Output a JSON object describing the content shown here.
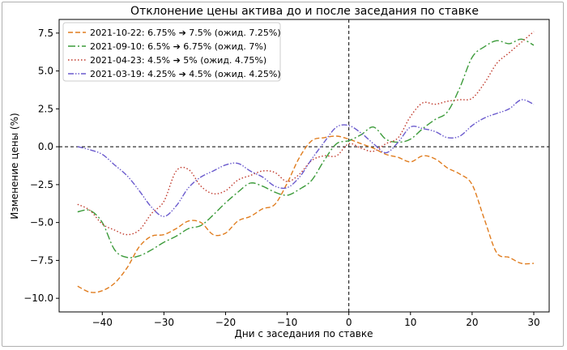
{
  "chart_data": {
    "type": "line",
    "title": "Отклонение цены актива до и после заседания по ставке",
    "xlabel": "Дни с заседания по ставке",
    "ylabel": "Изменение цены (%)",
    "xlim": [
      -47,
      32.5
    ],
    "ylim": [
      -10.9,
      8.4
    ],
    "xticks": [
      -40,
      -30,
      -20,
      -10,
      0,
      10,
      20,
      30
    ],
    "xtick_labels": [
      "−40",
      "−30",
      "−20",
      "−10",
      "0",
      "10",
      "20",
      "30"
    ],
    "yticks": [
      -10.0,
      -7.5,
      -5.0,
      -2.5,
      0.0,
      2.5,
      5.0,
      7.5
    ],
    "ytick_labels": [
      "−10.0",
      "−7.5",
      "−5.0",
      "−2.5",
      "0.0",
      "2.5",
      "5.0",
      "7.5"
    ],
    "grid": false,
    "legend_position": "top-left",
    "reference_lines": {
      "horizontal_y": 0,
      "vertical_x": 0,
      "style": "dashed",
      "color": "#000000"
    },
    "series": [
      {
        "name": "2021-10-22: 6.75% ➔ 7.5% (ожид. 7.25%)",
        "color": "#e07c1e",
        "dash": "dashed",
        "x": [
          -44,
          -42,
          -40,
          -38,
          -36,
          -34,
          -32,
          -30,
          -28,
          -26,
          -24,
          -22,
          -20,
          -18,
          -16,
          -14,
          -12,
          -10,
          -8,
          -6,
          -4,
          -2,
          0,
          2,
          4,
          6,
          8,
          10,
          12,
          14,
          16,
          18,
          20,
          22,
          24,
          26,
          28,
          30
        ],
        "y": [
          -9.2,
          -9.6,
          -9.5,
          -9.0,
          -8.0,
          -6.6,
          -5.9,
          -5.8,
          -5.4,
          -4.9,
          -5.0,
          -5.8,
          -5.7,
          -4.9,
          -4.6,
          -4.1,
          -3.8,
          -2.4,
          -0.7,
          0.4,
          0.6,
          0.7,
          0.5,
          0.2,
          -0.1,
          -0.5,
          -0.7,
          -1.0,
          -0.6,
          -0.8,
          -1.4,
          -1.8,
          -2.5,
          -4.8,
          -7.0,
          -7.3,
          -7.7,
          -7.7
        ]
      },
      {
        "name": "2021-09-10: 6.5% ➔ 6.75% (ожид. 7%)",
        "color": "#3c9b3a",
        "dash": "dashdot",
        "x": [
          -44,
          -42,
          -40,
          -38,
          -36,
          -34,
          -32,
          -30,
          -28,
          -26,
          -24,
          -22,
          -20,
          -18,
          -16,
          -14,
          -12,
          -10,
          -8,
          -6,
          -4,
          -2,
          0,
          2,
          4,
          6,
          8,
          10,
          12,
          14,
          16,
          18,
          20,
          22,
          24,
          26,
          28,
          30
        ],
        "y": [
          -4.3,
          -4.2,
          -5.0,
          -6.8,
          -7.3,
          -7.2,
          -6.8,
          -6.3,
          -5.9,
          -5.4,
          -5.2,
          -4.5,
          -3.7,
          -3.0,
          -2.4,
          -2.6,
          -3.0,
          -3.2,
          -2.8,
          -2.2,
          -0.9,
          0.2,
          0.4,
          0.8,
          1.3,
          0.5,
          0.3,
          0.5,
          1.2,
          1.8,
          2.3,
          3.9,
          5.9,
          6.6,
          7.0,
          6.8,
          7.1,
          6.7
        ]
      },
      {
        "name": "2021-04-23: 4.5% ➔ 5% (ожид. 4.75%)",
        "color": "#c0392b",
        "dash": "dotted",
        "x": [
          -44,
          -42,
          -40,
          -38,
          -36,
          -34,
          -32,
          -30,
          -28,
          -26,
          -24,
          -22,
          -20,
          -18,
          -16,
          -14,
          -12,
          -10,
          -8,
          -6,
          -4,
          -2,
          0,
          2,
          4,
          6,
          8,
          10,
          12,
          14,
          16,
          18,
          20,
          22,
          24,
          26,
          28,
          30
        ],
        "y": [
          -3.8,
          -4.2,
          -5.1,
          -5.5,
          -5.8,
          -5.5,
          -4.4,
          -3.6,
          -1.6,
          -1.5,
          -2.6,
          -3.1,
          -2.9,
          -2.2,
          -1.9,
          -1.6,
          -1.7,
          -2.3,
          -1.8,
          -0.9,
          -0.6,
          -0.6,
          0.2,
          -0.1,
          -0.3,
          0.2,
          0.6,
          2.0,
          2.9,
          2.8,
          3.0,
          3.1,
          3.2,
          4.2,
          5.5,
          6.2,
          6.9,
          7.6
        ]
      },
      {
        "name": "2021-03-19: 4.25% ➔ 4.5% (ожид. 4.25%)",
        "color": "#6a5acd",
        "dash": "dashdotdot",
        "x": [
          -44,
          -42,
          -40,
          -38,
          -36,
          -34,
          -32,
          -30,
          -28,
          -26,
          -24,
          -22,
          -20,
          -18,
          -16,
          -14,
          -12,
          -10,
          -8,
          -6,
          -4,
          -2,
          0,
          2,
          4,
          6,
          8,
          10,
          12,
          14,
          16,
          18,
          20,
          22,
          24,
          26,
          28,
          30
        ],
        "y": [
          0.0,
          -0.2,
          -0.5,
          -1.2,
          -1.9,
          -2.9,
          -4.0,
          -4.6,
          -3.9,
          -2.7,
          -2.0,
          -1.6,
          -1.2,
          -1.1,
          -1.6,
          -2.0,
          -2.6,
          -2.7,
          -2.0,
          -0.8,
          0.3,
          1.3,
          1.4,
          0.9,
          0.2,
          -0.4,
          0.3,
          1.3,
          1.2,
          1.0,
          0.6,
          0.7,
          1.4,
          1.9,
          2.2,
          2.5,
          3.1,
          2.8
        ]
      }
    ]
  }
}
